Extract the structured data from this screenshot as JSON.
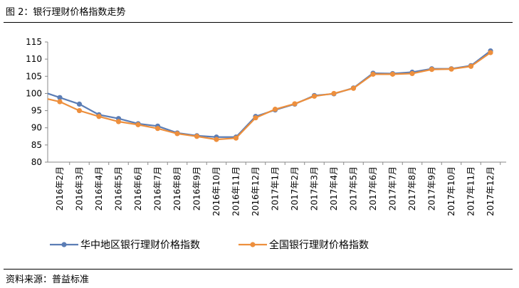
{
  "header": {
    "title": "图 2：银行理财价格指数走势"
  },
  "footer": {
    "source": "资料来源：普益标准"
  },
  "chart_data": {
    "type": "line",
    "title": "银行理财价格指数走势",
    "xlabel": "",
    "ylabel": "",
    "ylim": [
      80,
      115
    ],
    "yticks": [
      80,
      85,
      90,
      95,
      100,
      105,
      110,
      115
    ],
    "grid": false,
    "legend_position": "bottom",
    "categories": [
      "2016年2月",
      "2016年3月",
      "2016年4月",
      "2016年5月",
      "2016年6月",
      "2016年7月",
      "2016年8月",
      "2016年9月",
      "2016年10月",
      "2016年11月",
      "2016年12月",
      "2017年1月",
      "2017年2月",
      "2017年3月",
      "2017年4月",
      "2017年5月",
      "2017年6月",
      "2017年7月",
      "2017年8月",
      "2017年9月",
      "2017年10月",
      "2017年11月",
      "2017年12月"
    ],
    "series": [
      {
        "name": "华中地区银行理财价格指数",
        "color": "#5B7DB5",
        "start_value": 100,
        "values": [
          98.8,
          96.9,
          93.8,
          92.7,
          91.2,
          90.5,
          88.5,
          87.7,
          87.3,
          87.3,
          93.3,
          95.2,
          96.9,
          99.4,
          99.9,
          101.6,
          105.9,
          105.8,
          106.2,
          107.2,
          107.2,
          108.1,
          112.4
        ]
      },
      {
        "name": "全国银行理财价格指数",
        "color": "#ED8F3D",
        "start_value": 98.4,
        "values": [
          97.6,
          95.0,
          93.3,
          91.8,
          90.9,
          89.8,
          88.3,
          87.5,
          86.6,
          87.0,
          92.9,
          95.4,
          97.0,
          99.2,
          100.0,
          101.5,
          105.6,
          105.6,
          105.8,
          107.0,
          107.1,
          107.9,
          111.9
        ]
      }
    ]
  }
}
